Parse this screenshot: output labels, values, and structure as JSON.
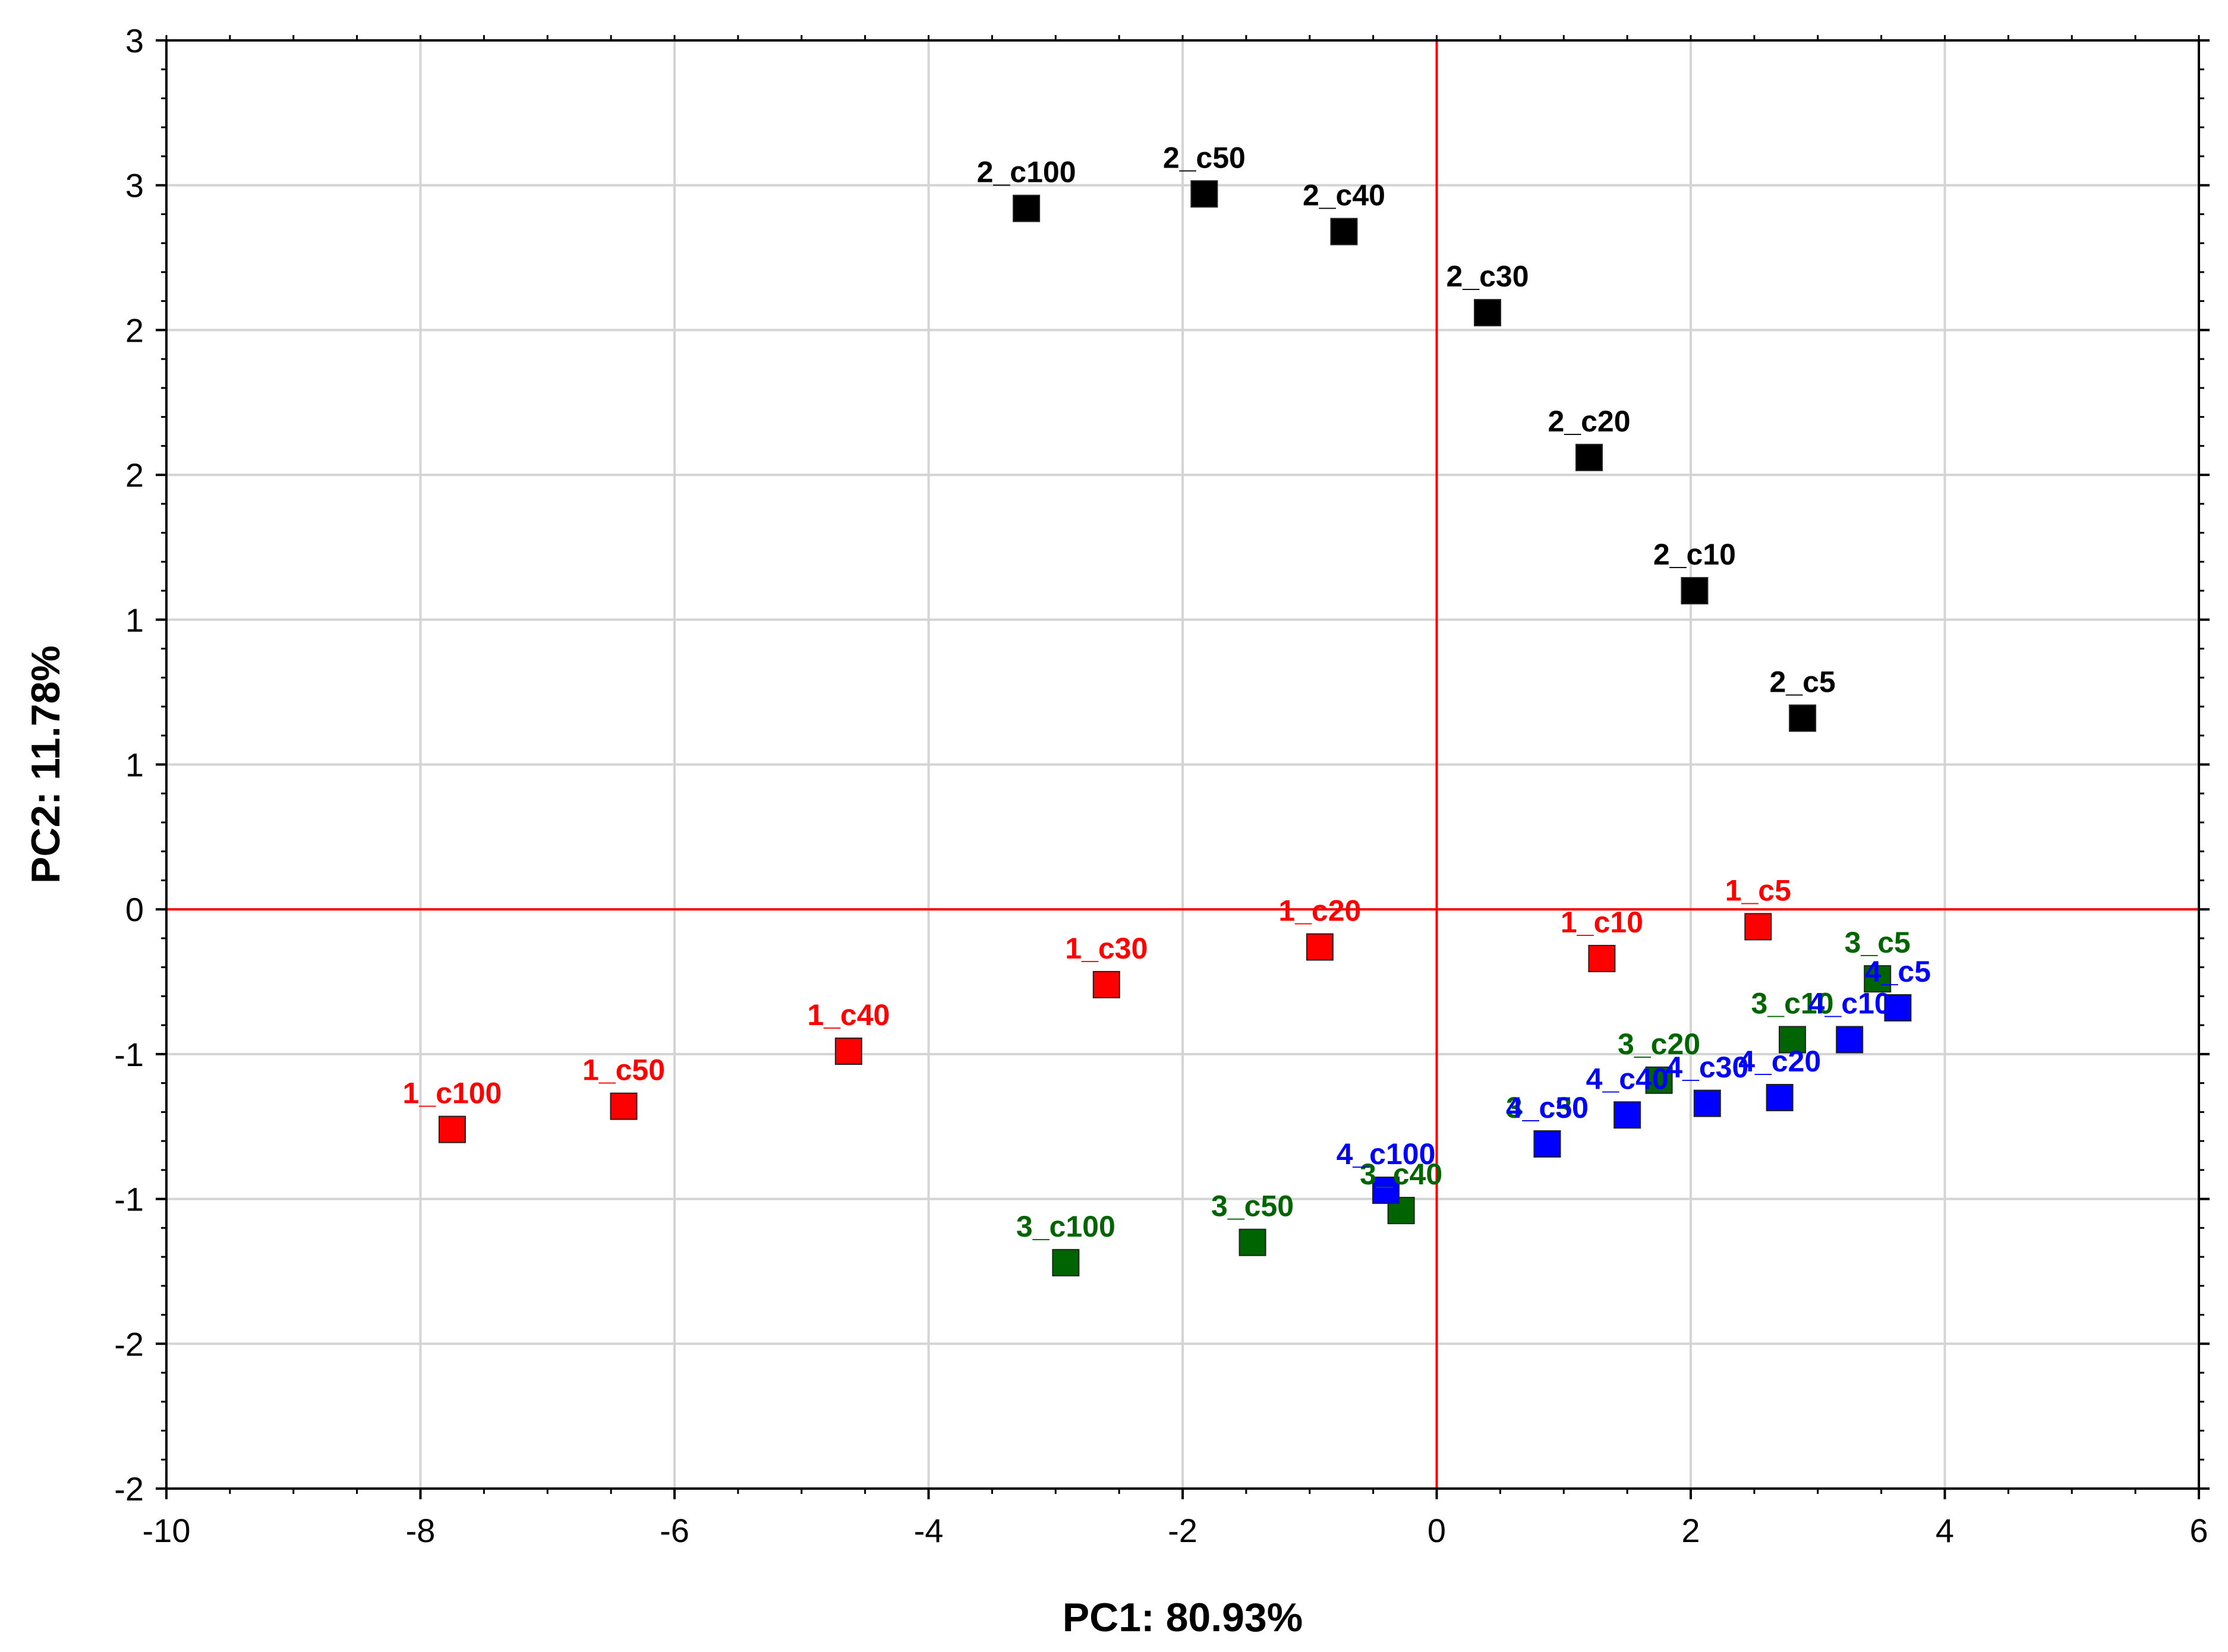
{
  "chart_data": {
    "type": "scatter",
    "title": "",
    "xlabel": "PC1: 80.93%",
    "ylabel": "PC2: 11.78%",
    "xlim": [
      -10,
      6
    ],
    "ylim": [
      -2,
      3
    ],
    "x_ticks": [
      -10,
      -8,
      -6,
      -4,
      -2,
      0,
      2,
      4,
      6
    ],
    "x_tick_labels": [
      "-10",
      "-8",
      "-6",
      "-4",
      "-2",
      "0",
      "2",
      "4",
      "6"
    ],
    "y_ticks": [
      -2,
      -1.5,
      -1,
      -0.5,
      0,
      0.5,
      1,
      1.5,
      2,
      2.5,
      3
    ],
    "y_tick_labels": [
      "-2",
      "-2",
      "-1",
      "-1",
      "0",
      "1",
      "1",
      "2",
      "2",
      "3",
      "3"
    ],
    "grid": true,
    "reference_lines": [
      {
        "orientation": "vertical",
        "value": 0,
        "color": "#ff0000"
      },
      {
        "orientation": "horizontal",
        "value": 0,
        "color": "#ff0000"
      }
    ],
    "series": [
      {
        "name": "1",
        "color": "#ff0000",
        "points": [
          {
            "label": "1_c100",
            "x": -7.75,
            "y": -0.76
          },
          {
            "label": "1_c50",
            "x": -6.4,
            "y": -0.68
          },
          {
            "label": "1_c40",
            "x": -4.63,
            "y": -0.49
          },
          {
            "label": "1_c30",
            "x": -2.6,
            "y": -0.26
          },
          {
            "label": "1_c20",
            "x": -0.92,
            "y": -0.13
          },
          {
            "label": "1_c10",
            "x": 1.3,
            "y": -0.17
          },
          {
            "label": "1_c5",
            "x": 2.53,
            "y": -0.06
          }
        ]
      },
      {
        "name": "2",
        "color": "#000000",
        "points": [
          {
            "label": "2_c100",
            "x": -3.23,
            "y": 2.42
          },
          {
            "label": "2_c50",
            "x": -1.83,
            "y": 2.47
          },
          {
            "label": "2_c40",
            "x": -0.73,
            "y": 2.34
          },
          {
            "label": "2_c30",
            "x": 0.4,
            "y": 2.06
          },
          {
            "label": "2_c20",
            "x": 1.2,
            "y": 1.56
          },
          {
            "label": "2_c10",
            "x": 2.03,
            "y": 1.1
          },
          {
            "label": "2_c5",
            "x": 2.88,
            "y": 0.66
          }
        ]
      },
      {
        "name": "3",
        "color": "#006400",
        "points": [
          {
            "label": "3_c100",
            "x": -2.92,
            "y": -1.22
          },
          {
            "label": "3_c50",
            "x": -1.45,
            "y": -1.15
          },
          {
            "label": "3_c40",
            "x": -0.28,
            "y": -1.04
          },
          {
            "label": "3_c30",
            "x": 0.87,
            "y": -0.81
          },
          {
            "label": "3_c20",
            "x": 1.75,
            "y": -0.59
          },
          {
            "label": "3_c10",
            "x": 2.8,
            "y": -0.45
          },
          {
            "label": "3_c5",
            "x": 3.47,
            "y": -0.24
          }
        ]
      },
      {
        "name": "4",
        "color": "#0000ff",
        "points": [
          {
            "label": "4_c100",
            "x": -0.4,
            "y": -0.97
          },
          {
            "label": "4_c50",
            "x": 0.87,
            "y": -0.81
          },
          {
            "label": "4_c40",
            "x": 1.5,
            "y": -0.71
          },
          {
            "label": "4_c30",
            "x": 2.13,
            "y": -0.67
          },
          {
            "label": "4_c20",
            "x": 2.7,
            "y": -0.65
          },
          {
            "label": "4_c10",
            "x": 3.25,
            "y": -0.45
          },
          {
            "label": "4_c5",
            "x": 3.63,
            "y": -0.34
          }
        ]
      }
    ]
  }
}
